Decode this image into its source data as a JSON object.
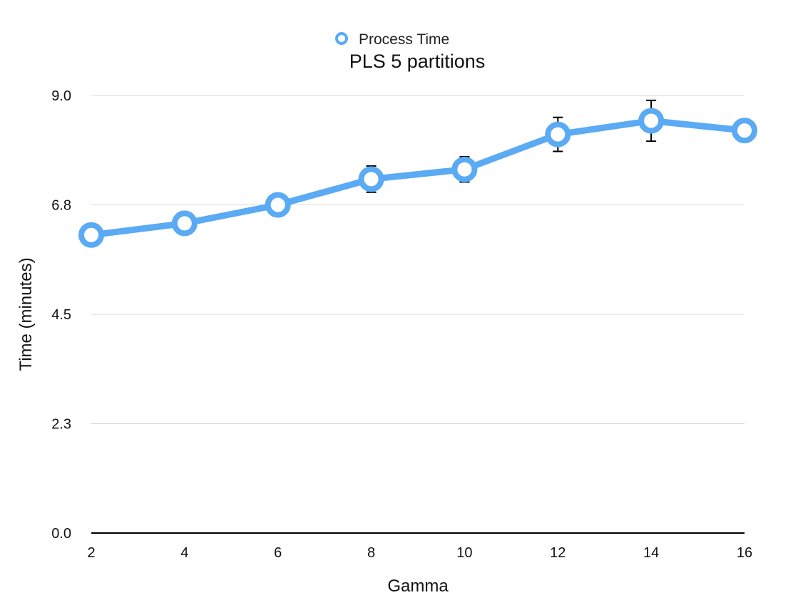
{
  "chart_data": {
    "type": "line",
    "title": "PLS 5 partitions",
    "xlabel": "Gamma",
    "ylabel": "Time (minutes)",
    "x": [
      2,
      4,
      6,
      8,
      10,
      12,
      14,
      16
    ],
    "x_ticks": [
      "2",
      "4",
      "6",
      "8",
      "10",
      "12",
      "14",
      "16"
    ],
    "y_ticks": [
      "0.0",
      "2.3",
      "4.5",
      "6.8",
      "9.0"
    ],
    "y_tick_values": [
      0.0,
      2.25,
      4.5,
      6.75,
      9.0
    ],
    "ylim": [
      0,
      9.0
    ],
    "xlim": [
      2,
      16
    ],
    "grid": true,
    "legend_position": "top-center",
    "series": [
      {
        "name": "Process Time",
        "color": "#5aaaf4",
        "values": [
          6.13,
          6.37,
          6.75,
          7.28,
          7.48,
          8.2,
          8.48,
          8.28
        ],
        "error": [
          0.22,
          0.02,
          0.1,
          0.27,
          0.26,
          0.35,
          0.42,
          0.18
        ]
      }
    ]
  }
}
